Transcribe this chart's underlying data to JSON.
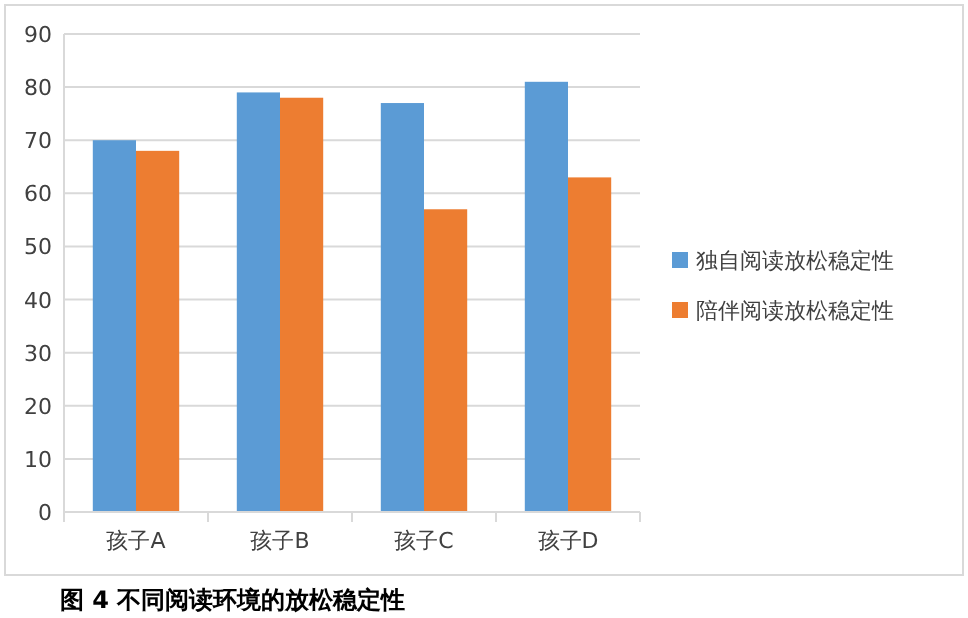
{
  "chart_data": {
    "type": "bar",
    "title": "图 4 不同阅读环境的放松稳定性",
    "categories": [
      "孩子A",
      "孩子B",
      "孩子C",
      "孩子D"
    ],
    "series": [
      {
        "name": "独自阅读放松稳定性",
        "color": "#5b9bd5",
        "values": [
          70,
          79,
          77,
          81
        ]
      },
      {
        "name": "陪伴阅读放松稳定性",
        "color": "#ed7d31",
        "values": [
          68,
          78,
          57,
          63
        ]
      }
    ],
    "ylim": [
      0,
      90
    ],
    "yticks": [
      0,
      10,
      20,
      30,
      40,
      50,
      60,
      70,
      80,
      90
    ],
    "grid": "y",
    "legend": "right"
  }
}
